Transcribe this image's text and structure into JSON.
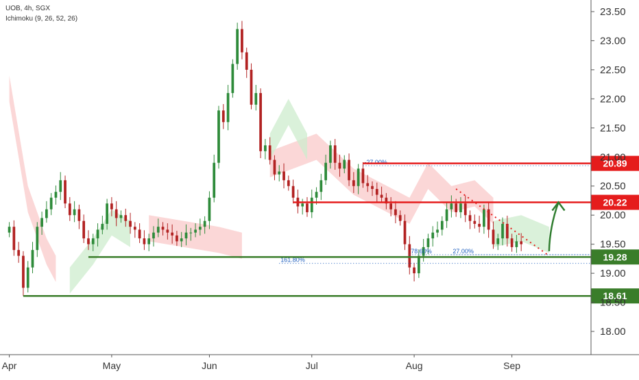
{
  "header": {
    "symbol_line": "UOB, 4h, SGX",
    "indicator_line": "Ichimoku (9, 26, 52, 26)"
  },
  "colors": {
    "up_candle": "#2e8b3a",
    "down_candle": "#b22222",
    "resistance": "#e51c1c",
    "support": "#3a7d2a",
    "cloud_bear": "#f9caca",
    "cloud_bull": "#cdeccd",
    "fib": "#1f5fbf",
    "trendline": "#e51c1c",
    "arrow": "#2f7d2f"
  },
  "chart_data": {
    "type": "candlestick",
    "symbol": "UOB",
    "timeframe": "4h",
    "exchange": "SGX",
    "indicator": "Ichimoku (9, 26, 52, 26)",
    "y_ticks": [
      "23.50",
      "23.00",
      "22.50",
      "22.00",
      "21.50",
      "21.00",
      "20.50",
      "20.00",
      "19.50",
      "19.00",
      "18.50",
      "18.00"
    ],
    "x_ticks": [
      {
        "label": "Apr",
        "x": 0
      },
      {
        "label": "May",
        "x": 22
      },
      {
        "label": "Jun",
        "x": 43
      },
      {
        "label": "Jul",
        "x": 65
      },
      {
        "label": "Aug",
        "x": 87
      },
      {
        "label": "Sep",
        "x": 108
      }
    ],
    "ylim": [
      17.6,
      23.7
    ],
    "xlim": [
      -2,
      125
    ],
    "closes": [
      [
        0,
        19.8
      ],
      [
        1,
        19.4
      ],
      [
        2,
        19.3
      ],
      [
        3,
        18.75
      ],
      [
        4,
        19.1
      ],
      [
        5,
        19.4
      ],
      [
        6,
        19.8
      ],
      [
        7,
        19.95
      ],
      [
        8,
        20.1
      ],
      [
        9,
        20.3
      ],
      [
        10,
        20.4
      ],
      [
        11,
        20.6
      ],
      [
        12,
        20.2
      ],
      [
        13,
        20.0
      ],
      [
        14,
        20.1
      ],
      [
        15,
        19.9
      ],
      [
        16,
        19.6
      ],
      [
        17,
        19.5
      ],
      [
        18,
        19.6
      ],
      [
        19,
        19.75
      ],
      [
        20,
        19.85
      ],
      [
        21,
        20.2
      ],
      [
        22,
        20.1
      ],
      [
        23,
        19.95
      ],
      [
        24,
        20.0
      ],
      [
        25,
        19.9
      ],
      [
        26,
        19.8
      ],
      [
        27,
        19.75
      ],
      [
        28,
        19.6
      ],
      [
        29,
        19.5
      ],
      [
        30,
        19.6
      ],
      [
        31,
        19.7
      ],
      [
        32,
        19.8
      ],
      [
        33,
        19.75
      ],
      [
        34,
        19.7
      ],
      [
        35,
        19.65
      ],
      [
        36,
        19.55
      ],
      [
        37,
        19.6
      ],
      [
        38,
        19.7
      ],
      [
        39,
        19.7
      ],
      [
        40,
        19.75
      ],
      [
        41,
        19.8
      ],
      [
        42,
        19.9
      ],
      [
        43,
        20.3
      ],
      [
        44,
        20.9
      ],
      [
        45,
        21.8
      ],
      [
        46,
        21.6
      ],
      [
        47,
        22.1
      ],
      [
        48,
        22.6
      ],
      [
        49,
        23.2
      ],
      [
        50,
        22.8
      ],
      [
        51,
        22.5
      ],
      [
        52,
        21.9
      ],
      [
        53,
        22.1
      ],
      [
        54,
        21.1
      ],
      [
        55,
        21.2
      ],
      [
        56,
        20.95
      ],
      [
        57,
        20.7
      ],
      [
        58,
        20.75
      ],
      [
        59,
        20.6
      ],
      [
        60,
        20.5
      ],
      [
        61,
        20.3
      ],
      [
        62,
        20.15
      ],
      [
        63,
        20.2
      ],
      [
        64,
        20.05
      ],
      [
        65,
        20.3
      ],
      [
        66,
        20.4
      ],
      [
        67,
        20.6
      ],
      [
        68,
        20.9
      ],
      [
        69,
        21.2
      ],
      [
        70,
        20.9
      ],
      [
        71,
        20.8
      ],
      [
        72,
        20.95
      ],
      [
        73,
        20.6
      ],
      [
        74,
        20.5
      ],
      [
        75,
        20.8
      ],
      [
        76,
        20.55
      ],
      [
        77,
        20.5
      ],
      [
        78,
        20.45
      ],
      [
        79,
        20.35
      ],
      [
        80,
        20.3
      ],
      [
        81,
        20.2
      ],
      [
        82,
        20.1
      ],
      [
        83,
        20.0
      ],
      [
        84,
        19.9
      ],
      [
        85,
        19.5
      ],
      [
        86,
        19.1
      ],
      [
        87,
        19.0
      ],
      [
        88,
        19.3
      ],
      [
        89,
        19.45
      ],
      [
        90,
        19.6
      ],
      [
        91,
        19.7
      ],
      [
        92,
        19.75
      ],
      [
        93,
        19.9
      ],
      [
        94,
        20.1
      ],
      [
        95,
        20.2
      ],
      [
        96,
        20.05
      ],
      [
        97,
        20.2
      ],
      [
        98,
        20.0
      ],
      [
        99,
        19.9
      ],
      [
        100,
        19.85
      ],
      [
        101,
        19.8
      ],
      [
        102,
        20.1
      ],
      [
        103,
        19.75
      ],
      [
        104,
        19.5
      ],
      [
        105,
        19.6
      ],
      [
        106,
        19.85
      ],
      [
        107,
        19.6
      ],
      [
        108,
        19.45
      ],
      [
        109,
        19.55
      ],
      [
        110,
        19.5
      ]
    ],
    "levels": [
      {
        "name": "resistance-upper",
        "value": 20.89,
        "label": "20.89",
        "color": "resistance",
        "start_x": 76
      },
      {
        "name": "resistance-lower",
        "value": 20.22,
        "label": "20.22",
        "color": "resistance",
        "start_x": 61
      },
      {
        "name": "support-upper",
        "value": 19.28,
        "label": "19.28",
        "color": "support",
        "start_x": 17
      },
      {
        "name": "support-lower",
        "value": 18.61,
        "label": "18.61",
        "color": "support",
        "start_x": 3
      }
    ],
    "fib_lines": [
      {
        "label": "-27.00%",
        "value": 20.85,
        "start_x": 76
      },
      {
        "label": "78.60%",
        "value": 19.32,
        "start_x": 86
      },
      {
        "label": "27.00%",
        "value": 19.32,
        "start_x": 95
      },
      {
        "label": "161.80%",
        "value": 19.17,
        "start_x": 58
      }
    ],
    "trendline": [
      [
        96,
        20.45
      ],
      [
        116,
        19.3
      ]
    ],
    "arrow": [
      [
        116,
        19.38
      ],
      [
        118,
        20.22
      ]
    ],
    "cloud_bear": [
      [
        [
          0,
          22.4
        ],
        [
          4,
          20.5
        ],
        [
          8,
          19.6
        ],
        [
          10,
          19.3
        ]
      ],
      [
        [
          30,
          20.0
        ],
        [
          45,
          19.8
        ],
        [
          50,
          19.7
        ]
      ],
      [
        [
          56,
          21.1
        ],
        [
          66,
          21.4
        ],
        [
          74,
          20.8
        ],
        [
          86,
          20.3
        ],
        [
          90,
          20.9
        ],
        [
          95,
          20.5
        ],
        [
          100,
          20.6
        ],
        [
          104,
          20.3
        ]
      ]
    ],
    "cloud_bull": [
      [
        [
          13,
          19.1
        ],
        [
          18,
          19.6
        ],
        [
          22,
          20.1
        ],
        [
          26,
          19.9
        ]
      ],
      [
        [
          56,
          21.4
        ],
        [
          60,
          22.0
        ],
        [
          64,
          21.4
        ]
      ],
      [
        [
          104,
          19.9
        ],
        [
          110,
          20.0
        ],
        [
          116,
          19.8
        ]
      ]
    ]
  }
}
